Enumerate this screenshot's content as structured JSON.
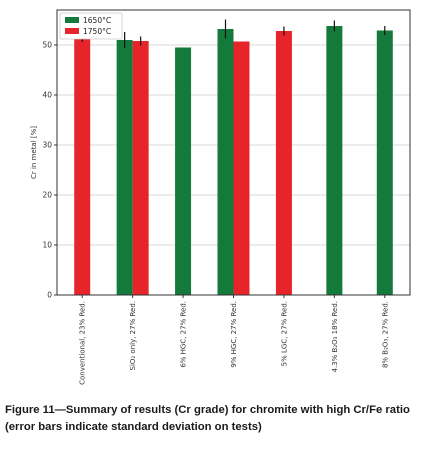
{
  "chart_data": {
    "type": "bar",
    "categories": [
      "Conventional, 23% Red.",
      "SiO₂ only, 27% Red.",
      "6% HGC, 27% Red.",
      "9% HGC, 27% Red.",
      "5% LGC, 27% Red.",
      "4.3% B₂O₃ 18% Red.",
      "8% B₂O₃, 27% Red."
    ],
    "series": [
      {
        "name": "1650°C",
        "color": "#137a3b",
        "values": [
          null,
          51.0,
          49.5,
          53.2,
          null,
          53.8,
          52.9
        ],
        "errors": [
          null,
          1.6,
          null,
          1.9,
          null,
          1.1,
          0.9
        ]
      },
      {
        "name": "1750°C",
        "color": "#e8242b",
        "values": [
          51.4,
          50.8,
          null,
          50.7,
          52.8,
          null,
          null
        ],
        "errors": [
          0.8,
          0.9,
          null,
          null,
          0.9,
          null,
          null
        ]
      }
    ],
    "ylabel": "Cr in metal [%]",
    "ylim": [
      0,
      57
    ],
    "yticks": [
      0,
      10,
      20,
      30,
      40,
      50
    ],
    "grid": "horizontal",
    "legend_position": "top-left"
  },
  "caption": "Figure 11—Summary of results (Cr grade) for chromite with high Cr/Fe ratio (error bars indicate standard deviation on tests)"
}
